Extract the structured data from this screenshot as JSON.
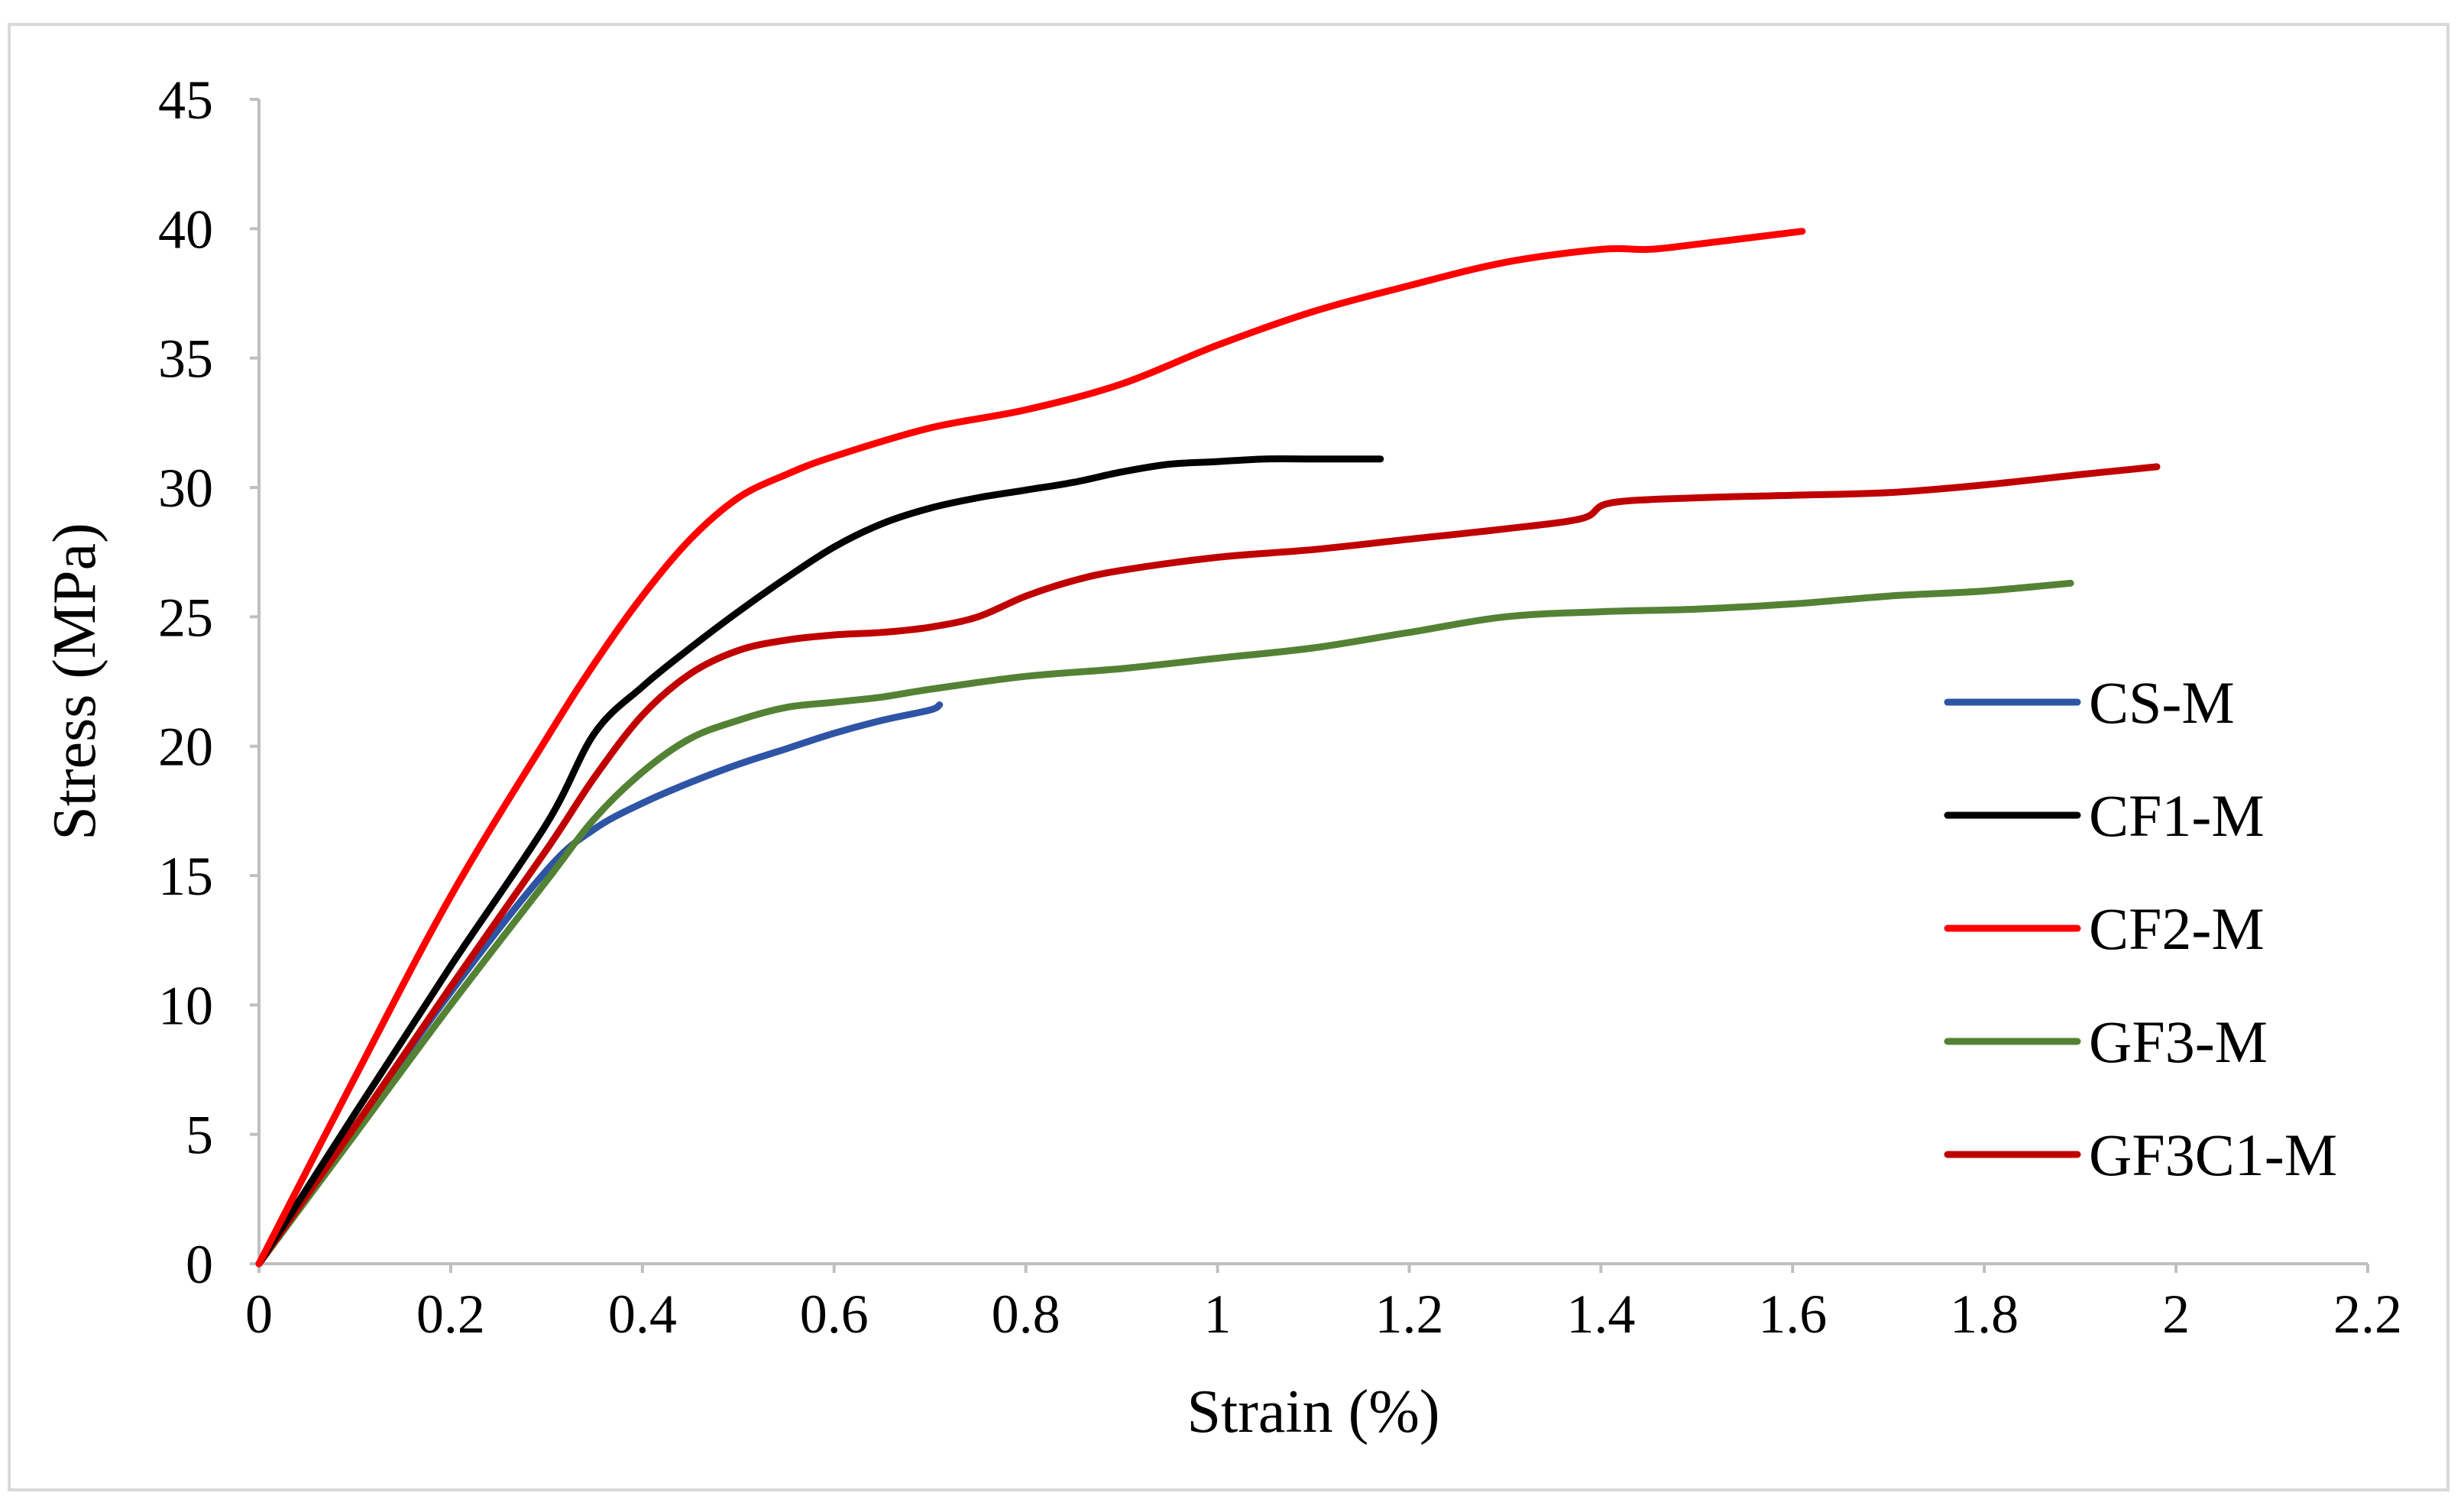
{
  "chart_data": {
    "type": "line",
    "title": "",
    "xlabel": "Strain (%)",
    "ylabel": "Stress (MPa)",
    "xlim": [
      0,
      2.2
    ],
    "ylim": [
      0,
      45
    ],
    "x_ticks": [
      0,
      0.2,
      0.4,
      0.6,
      0.8,
      1,
      1.2,
      1.4,
      1.6,
      1.8,
      2,
      2.2
    ],
    "x_tick_labels": [
      "0",
      "0.2",
      "0.4",
      "0.6",
      "0.8",
      "1",
      "1.2",
      "1.4",
      "1.6",
      "1.8",
      "2",
      "2.2"
    ],
    "y_ticks": [
      0,
      5,
      10,
      15,
      20,
      25,
      30,
      35,
      40,
      45
    ],
    "y_tick_labels": [
      "0",
      "5",
      "10",
      "15",
      "20",
      "25",
      "30",
      "35",
      "40",
      "45"
    ],
    "grid": false,
    "legend_position": "right",
    "series": [
      {
        "name": "CS-M",
        "color": "#2e54a5",
        "x": [
          0,
          0.1,
          0.2,
          0.3,
          0.35,
          0.4,
          0.45,
          0.5,
          0.55,
          0.6,
          0.65,
          0.7,
          0.71
        ],
        "y": [
          0,
          5.3,
          10.5,
          15.2,
          16.8,
          17.8,
          18.6,
          19.3,
          19.9,
          20.5,
          21.0,
          21.4,
          21.6
        ]
      },
      {
        "name": "CF1-M",
        "color": "#000000",
        "x": [
          0,
          0.1,
          0.2,
          0.3,
          0.35,
          0.4,
          0.45,
          0.5,
          0.55,
          0.6,
          0.65,
          0.7,
          0.75,
          0.8,
          0.85,
          0.9,
          0.95,
          1.0,
          1.05,
          1.1,
          1.17
        ],
        "y": [
          0,
          5.8,
          11.5,
          17.0,
          20.5,
          22.3,
          23.8,
          25.2,
          26.5,
          27.7,
          28.6,
          29.2,
          29.6,
          29.9,
          30.2,
          30.6,
          30.9,
          31.0,
          31.1,
          31.1,
          31.1
        ]
      },
      {
        "name": "CF2-M",
        "color": "#ff0000",
        "x": [
          0,
          0.1,
          0.2,
          0.3,
          0.35,
          0.4,
          0.45,
          0.5,
          0.55,
          0.6,
          0.7,
          0.8,
          0.9,
          1.0,
          1.1,
          1.2,
          1.3,
          1.4,
          1.45,
          1.5,
          1.61
        ],
        "y": [
          0,
          7.2,
          14.2,
          20.3,
          23.2,
          25.8,
          28.0,
          29.6,
          30.5,
          31.2,
          32.3,
          33.0,
          34.0,
          35.5,
          36.8,
          37.8,
          38.7,
          39.2,
          39.2,
          39.4,
          39.9
        ]
      },
      {
        "name": "GF3-M",
        "color": "#548235",
        "x": [
          0,
          0.1,
          0.2,
          0.3,
          0.35,
          0.4,
          0.45,
          0.5,
          0.55,
          0.6,
          0.65,
          0.7,
          0.8,
          0.9,
          1.0,
          1.1,
          1.2,
          1.3,
          1.4,
          1.5,
          1.6,
          1.7,
          1.8,
          1.89
        ],
        "y": [
          0,
          5.0,
          10.0,
          14.8,
          17.2,
          19.0,
          20.3,
          21.0,
          21.5,
          21.7,
          21.9,
          22.2,
          22.7,
          23.0,
          23.4,
          23.8,
          24.4,
          25.0,
          25.2,
          25.3,
          25.5,
          25.8,
          26.0,
          26.3
        ]
      },
      {
        "name": "GF3C1-M",
        "color": "#c00000",
        "x": [
          0,
          0.1,
          0.2,
          0.3,
          0.35,
          0.4,
          0.45,
          0.5,
          0.55,
          0.6,
          0.65,
          0.7,
          0.75,
          0.8,
          0.85,
          0.9,
          1.0,
          1.1,
          1.2,
          1.3,
          1.38,
          1.41,
          1.5,
          1.6,
          1.7,
          1.8,
          1.9,
          1.98
        ],
        "y": [
          0,
          5.3,
          10.7,
          16.0,
          18.8,
          21.2,
          22.8,
          23.7,
          24.1,
          24.3,
          24.4,
          24.6,
          25.0,
          25.8,
          26.4,
          26.8,
          27.3,
          27.6,
          28.0,
          28.4,
          28.8,
          29.4,
          29.6,
          29.7,
          29.8,
          30.1,
          30.5,
          30.8
        ]
      }
    ]
  }
}
